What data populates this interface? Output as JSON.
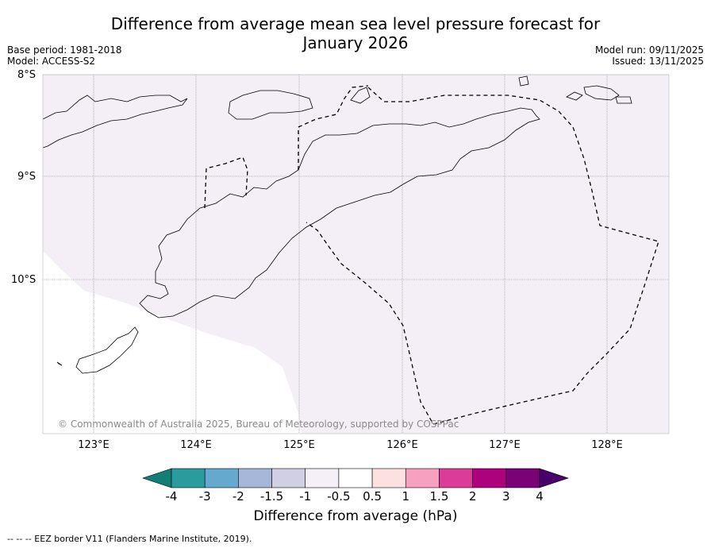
{
  "title_line1": "Difference from average mean sea level pressure forecast for",
  "title_line2": "January 2026",
  "meta_left": {
    "base_period": "Base period: 1981-2018",
    "model": "Model: ACCESS-S2"
  },
  "meta_right": {
    "model_run": "Model run: 09/11/2025",
    "issued": "Issued: 13/11/2025"
  },
  "latitude_labels": [
    "8°S",
    "9°S",
    "10°S"
  ],
  "longitude_labels": [
    "123°E",
    "124°E",
    "125°E",
    "126°E",
    "127°E",
    "128°E"
  ],
  "copyright": "© Commonwealth of Australia 2025, Bureau of Meteorology, supported by COSPPac",
  "colorbar": {
    "ticks": [
      "-4",
      "-3",
      "-2",
      "-1.5",
      "-1",
      "-0.5",
      "0.5",
      "1",
      "1.5",
      "2",
      "3",
      "4"
    ],
    "colors": [
      "#137f74",
      "#2a9ca0",
      "#66a9cf",
      "#a6b7d9",
      "#d0cfe4",
      "#f5eff8",
      "#ffffff",
      "#fde0e0",
      "#f8a0bf",
      "#dd3b9a",
      "#ae017e",
      "#7a0177",
      "#49006a"
    ],
    "title": "Difference from average (hPa)"
  },
  "map_fill_color": "#f4eef7",
  "footnote": "--  --  -- EEZ border V11 (Flanders Marine Institute, 2019)."
}
